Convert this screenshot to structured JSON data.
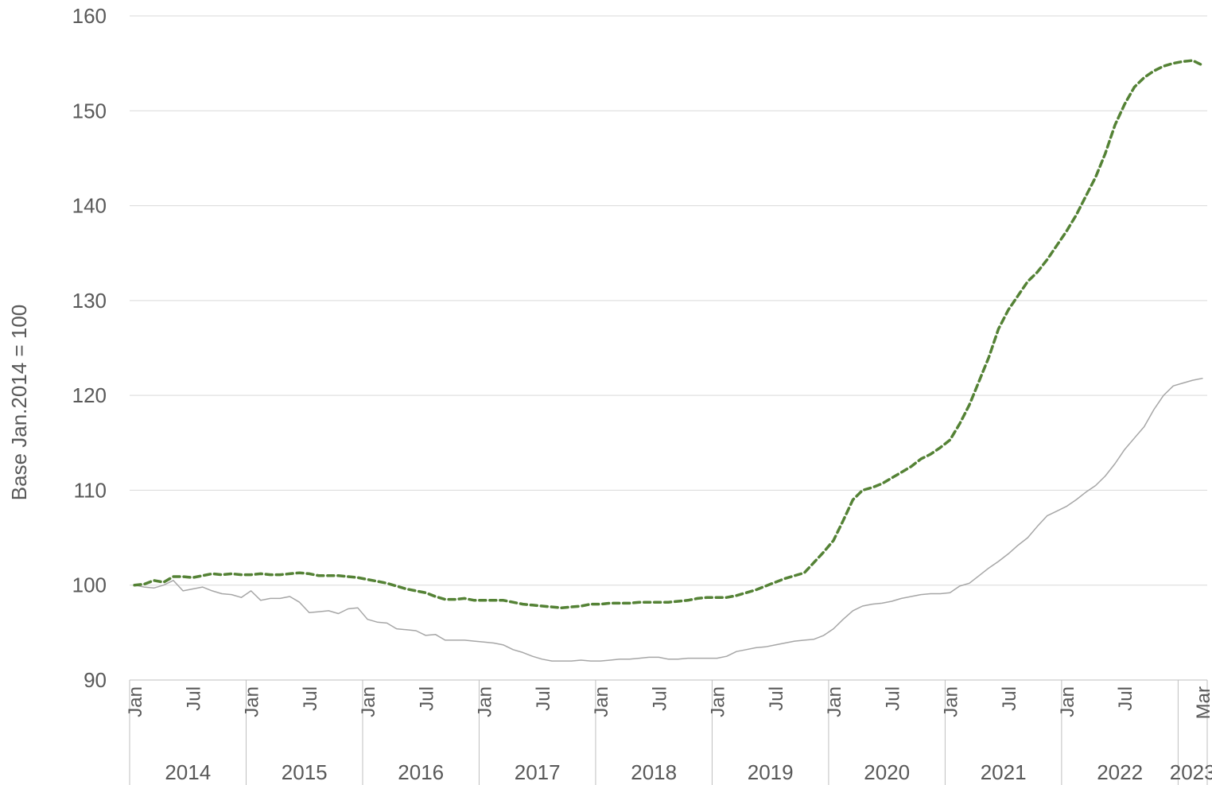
{
  "chart_data": {
    "type": "line",
    "ylabel": "Base Jan.2014 = 100",
    "ylim": [
      90,
      160
    ],
    "yticks": [
      90,
      100,
      110,
      120,
      130,
      140,
      150,
      160
    ],
    "grid": true,
    "x_range": [
      "2014-01",
      "2023-03"
    ],
    "x_month_ticks": [
      {
        "label": "Jan",
        "x": "2014-01"
      },
      {
        "label": "Jul",
        "x": "2014-07"
      },
      {
        "label": "Jan",
        "x": "2015-01"
      },
      {
        "label": "Jul",
        "x": "2015-07"
      },
      {
        "label": "Jan",
        "x": "2016-01"
      },
      {
        "label": "Jul",
        "x": "2016-07"
      },
      {
        "label": "Jan",
        "x": "2017-01"
      },
      {
        "label": "Jul",
        "x": "2017-07"
      },
      {
        "label": "Jan",
        "x": "2018-01"
      },
      {
        "label": "Jul",
        "x": "2018-07"
      },
      {
        "label": "Jan",
        "x": "2019-01"
      },
      {
        "label": "Jul",
        "x": "2019-07"
      },
      {
        "label": "Jan",
        "x": "2020-01"
      },
      {
        "label": "Jul",
        "x": "2020-07"
      },
      {
        "label": "Jan",
        "x": "2021-01"
      },
      {
        "label": "Jul",
        "x": "2021-07"
      },
      {
        "label": "Jan",
        "x": "2022-01"
      },
      {
        "label": "Jul",
        "x": "2022-07"
      },
      {
        "label": "Mar",
        "x": "2023-03"
      }
    ],
    "x_year_groups": [
      {
        "label": "2014",
        "start": "2014-01",
        "end": "2014-12"
      },
      {
        "label": "2015",
        "start": "2015-01",
        "end": "2015-12"
      },
      {
        "label": "2016",
        "start": "2016-01",
        "end": "2016-12"
      },
      {
        "label": "2017",
        "start": "2017-01",
        "end": "2017-12"
      },
      {
        "label": "2018",
        "start": "2018-01",
        "end": "2018-12"
      },
      {
        "label": "2019",
        "start": "2019-01",
        "end": "2019-12"
      },
      {
        "label": "2020",
        "start": "2020-01",
        "end": "2020-12"
      },
      {
        "label": "2021",
        "start": "2021-01",
        "end": "2021-12"
      },
      {
        "label": "2022",
        "start": "2022-01",
        "end": "2022-12"
      },
      {
        "label": "2023",
        "start": "2023-01",
        "end": "2023-03"
      }
    ],
    "series": [
      {
        "style": "dashed",
        "color": "#548235",
        "x": [
          "2014-01",
          "2014-02",
          "2014-03",
          "2014-04",
          "2014-05",
          "2014-06",
          "2014-07",
          "2014-08",
          "2014-09",
          "2014-10",
          "2014-11",
          "2014-12",
          "2015-01",
          "2015-02",
          "2015-03",
          "2015-04",
          "2015-05",
          "2015-06",
          "2015-07",
          "2015-08",
          "2015-09",
          "2015-10",
          "2015-11",
          "2015-12",
          "2016-01",
          "2016-02",
          "2016-03",
          "2016-04",
          "2016-05",
          "2016-06",
          "2016-07",
          "2016-08",
          "2016-09",
          "2016-10",
          "2016-11",
          "2016-12",
          "2017-01",
          "2017-02",
          "2017-03",
          "2017-04",
          "2017-05",
          "2017-06",
          "2017-07",
          "2017-08",
          "2017-09",
          "2017-10",
          "2017-11",
          "2017-12",
          "2018-01",
          "2018-02",
          "2018-03",
          "2018-04",
          "2018-05",
          "2018-06",
          "2018-07",
          "2018-08",
          "2018-09",
          "2018-10",
          "2018-11",
          "2018-12",
          "2019-01",
          "2019-02",
          "2019-03",
          "2019-04",
          "2019-05",
          "2019-06",
          "2019-07",
          "2019-08",
          "2019-09",
          "2019-10",
          "2019-11",
          "2019-12",
          "2020-01",
          "2020-02",
          "2020-03",
          "2020-04",
          "2020-05",
          "2020-06",
          "2020-07",
          "2020-08",
          "2020-09",
          "2020-10",
          "2020-11",
          "2020-12",
          "2021-01",
          "2021-02",
          "2021-03",
          "2021-04",
          "2021-05",
          "2021-06",
          "2021-07",
          "2021-08",
          "2021-09",
          "2021-10",
          "2021-11",
          "2021-12",
          "2022-01",
          "2022-02",
          "2022-03",
          "2022-04",
          "2022-05",
          "2022-06",
          "2022-07",
          "2022-08",
          "2022-09",
          "2022-10",
          "2022-11",
          "2022-12",
          "2023-01",
          "2023-02",
          "2023-03"
        ],
        "values": [
          100.0,
          100.1,
          100.5,
          100.3,
          100.9,
          100.9,
          100.8,
          101.0,
          101.2,
          101.1,
          101.2,
          101.1,
          101.1,
          101.2,
          101.1,
          101.1,
          101.2,
          101.3,
          101.2,
          101.0,
          101.0,
          101.0,
          100.9,
          100.8,
          100.6,
          100.4,
          100.2,
          99.9,
          99.6,
          99.4,
          99.2,
          98.8,
          98.5,
          98.5,
          98.6,
          98.4,
          98.4,
          98.4,
          98.4,
          98.2,
          98.0,
          97.9,
          97.8,
          97.7,
          97.6,
          97.7,
          97.8,
          98.0,
          98.0,
          98.1,
          98.1,
          98.1,
          98.2,
          98.2,
          98.2,
          98.2,
          98.3,
          98.4,
          98.6,
          98.7,
          98.7,
          98.7,
          98.9,
          99.2,
          99.5,
          99.9,
          100.3,
          100.7,
          101.0,
          101.3,
          102.4,
          103.5,
          104.7,
          106.8,
          109.0,
          110.0,
          110.3,
          110.7,
          111.3,
          111.9,
          112.5,
          113.3,
          113.8,
          114.5,
          115.3,
          117.0,
          119.0,
          121.5,
          124.0,
          127.0,
          129.0,
          130.5,
          132.0,
          133.0,
          134.3,
          135.8,
          137.3,
          139.0,
          141.0,
          143.0,
          145.5,
          148.5,
          150.7,
          152.5,
          153.5,
          154.2,
          154.7,
          155.0,
          155.2,
          155.3,
          154.8
        ]
      },
      {
        "style": "solid",
        "color": "#a6a6a6",
        "x": [
          "2014-01",
          "2014-02",
          "2014-03",
          "2014-04",
          "2014-05",
          "2014-06",
          "2014-07",
          "2014-08",
          "2014-09",
          "2014-10",
          "2014-11",
          "2014-12",
          "2015-01",
          "2015-02",
          "2015-03",
          "2015-04",
          "2015-05",
          "2015-06",
          "2015-07",
          "2015-08",
          "2015-09",
          "2015-10",
          "2015-11",
          "2015-12",
          "2016-01",
          "2016-02",
          "2016-03",
          "2016-04",
          "2016-05",
          "2016-06",
          "2016-07",
          "2016-08",
          "2016-09",
          "2016-10",
          "2016-11",
          "2016-12",
          "2017-01",
          "2017-02",
          "2017-03",
          "2017-04",
          "2017-05",
          "2017-06",
          "2017-07",
          "2017-08",
          "2017-09",
          "2017-10",
          "2017-11",
          "2017-12",
          "2018-01",
          "2018-02",
          "2018-03",
          "2018-04",
          "2018-05",
          "2018-06",
          "2018-07",
          "2018-08",
          "2018-09",
          "2018-10",
          "2018-11",
          "2018-12",
          "2019-01",
          "2019-02",
          "2019-03",
          "2019-04",
          "2019-05",
          "2019-06",
          "2019-07",
          "2019-08",
          "2019-09",
          "2019-10",
          "2019-11",
          "2019-12",
          "2020-01",
          "2020-02",
          "2020-03",
          "2020-04",
          "2020-05",
          "2020-06",
          "2020-07",
          "2020-08",
          "2020-09",
          "2020-10",
          "2020-11",
          "2020-12",
          "2021-01",
          "2021-02",
          "2021-03",
          "2021-04",
          "2021-05",
          "2021-06",
          "2021-07",
          "2021-08",
          "2021-09",
          "2021-10",
          "2021-11",
          "2021-12",
          "2022-01",
          "2022-02",
          "2022-03",
          "2022-04",
          "2022-05",
          "2022-06",
          "2022-07",
          "2022-08",
          "2022-09",
          "2022-10",
          "2022-11",
          "2022-12",
          "2023-01",
          "2023-02",
          "2023-03"
        ],
        "values": [
          100.0,
          99.8,
          99.7,
          100.0,
          100.5,
          99.4,
          99.6,
          99.8,
          99.4,
          99.1,
          99.0,
          98.7,
          99.4,
          98.4,
          98.6,
          98.6,
          98.8,
          98.2,
          97.1,
          97.2,
          97.3,
          97.0,
          97.5,
          97.6,
          96.4,
          96.1,
          96.0,
          95.4,
          95.3,
          95.2,
          94.7,
          94.8,
          94.2,
          94.2,
          94.2,
          94.1,
          94.0,
          93.9,
          93.7,
          93.2,
          92.9,
          92.5,
          92.2,
          92.0,
          92.0,
          92.0,
          92.1,
          92.0,
          92.0,
          92.1,
          92.2,
          92.2,
          92.3,
          92.4,
          92.4,
          92.2,
          92.2,
          92.3,
          92.3,
          92.3,
          92.3,
          92.5,
          93.0,
          93.2,
          93.4,
          93.5,
          93.7,
          93.9,
          94.1,
          94.2,
          94.3,
          94.7,
          95.4,
          96.4,
          97.3,
          97.8,
          98.0,
          98.1,
          98.3,
          98.6,
          98.8,
          99.0,
          99.1,
          99.1,
          99.2,
          99.9,
          100.2,
          101.0,
          101.8,
          102.5,
          103.3,
          104.2,
          105.0,
          106.2,
          107.3,
          107.8,
          108.3,
          109.0,
          109.8,
          110.5,
          111.5,
          112.8,
          114.3,
          115.5,
          116.7,
          118.5,
          120.0,
          121.0,
          121.3,
          121.6,
          121.8
        ]
      }
    ]
  }
}
